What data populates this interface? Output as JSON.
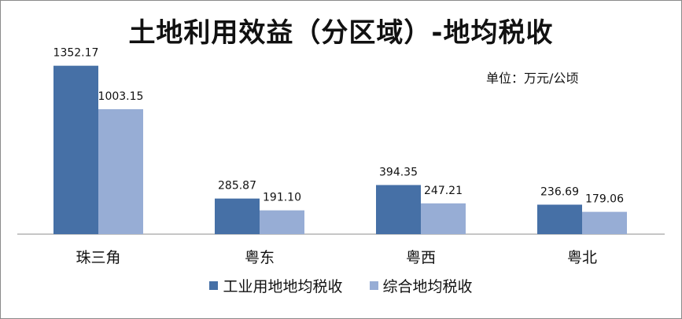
{
  "chart_data": {
    "type": "bar",
    "title": "土地利用效益（分区域）-地均税收",
    "unit_label": "单位：万元/公顷",
    "categories": [
      "珠三角",
      "粤东",
      "粤西",
      "粤北"
    ],
    "series": [
      {
        "name": "工业用地地均税收",
        "color": "#4670a6",
        "values": [
          1352.17,
          285.87,
          394.35,
          236.69
        ],
        "labels": [
          "1352.17",
          "285.87",
          "394.35",
          "236.69"
        ]
      },
      {
        "name": "综合地均税收",
        "color": "#97add5",
        "values": [
          1003.15,
          191.1,
          247.21,
          179.06
        ],
        "labels": [
          "1003.15",
          "191.10",
          "247.21",
          "179.06"
        ]
      }
    ],
    "ylim": [
      0,
      1350
    ],
    "grid": false,
    "legend_position": "bottom"
  }
}
